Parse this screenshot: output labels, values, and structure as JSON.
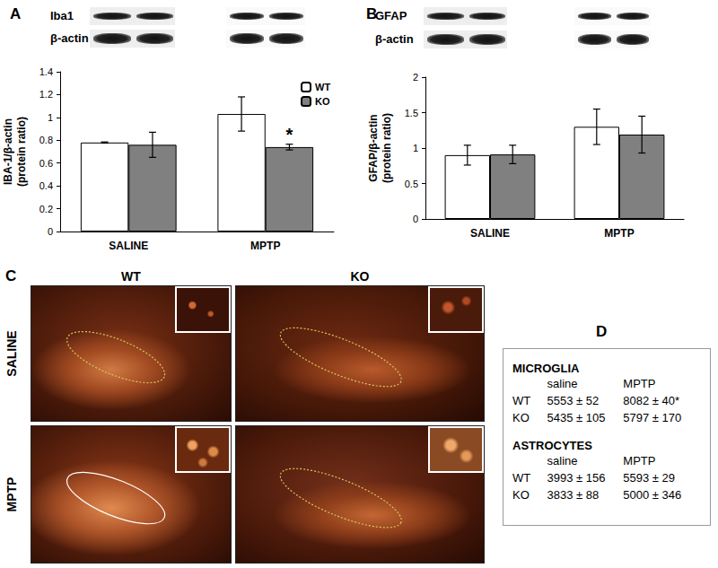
{
  "chart_data": [
    {
      "type": "bar",
      "title": "A",
      "y_label": "IBA-1/β-actin\n(protein ratio)",
      "categories": [
        "SALINE",
        "MPTP"
      ],
      "series": [
        {
          "name": "WT",
          "color": "#ffffff",
          "values": [
            0.78,
            1.03
          ],
          "errors": [
            0.005,
            0.15
          ]
        },
        {
          "name": "KO",
          "color": "#808080",
          "values": [
            0.76,
            0.74
          ],
          "errors": [
            0.11,
            0.025
          ]
        }
      ],
      "annotations": [
        {
          "text": "*",
          "series": "KO",
          "category": "MPTP"
        }
      ],
      "ylim": [
        0,
        1.4
      ],
      "yticks": [
        0,
        0.2,
        0.4,
        0.6,
        0.8,
        1,
        1.2,
        1.4
      ],
      "grid": false,
      "legend": "upper right"
    },
    {
      "type": "bar",
      "title": "B",
      "y_label": "GFAP/β-actin\n(protein ratio)",
      "categories": [
        "SALINE",
        "MPTP"
      ],
      "series": [
        {
          "name": "WT",
          "color": "#ffffff",
          "values": [
            0.9,
            1.3
          ],
          "errors": [
            0.14,
            0.25
          ]
        },
        {
          "name": "KO",
          "color": "#808080",
          "values": [
            0.91,
            1.19
          ],
          "errors": [
            0.13,
            0.26
          ]
        }
      ],
      "ylim": [
        0,
        2
      ],
      "yticks": [
        0,
        0.5,
        1,
        1.5,
        2
      ],
      "grid": false
    }
  ],
  "blots": [
    {
      "panel": "A",
      "rows": [
        "Iba1",
        "β-actin"
      ]
    },
    {
      "panel": "B",
      "rows": [
        "GFAP",
        "β-actin"
      ]
    }
  ],
  "panel_c": {
    "label": "C",
    "columns": [
      "WT",
      "KO"
    ],
    "rows": [
      "SALINE",
      "MPTP"
    ]
  },
  "panel_d": {
    "label": "D",
    "sections": [
      {
        "title": "MICROGLIA",
        "columns": [
          "saline",
          "MPTP"
        ],
        "rows": [
          [
            "WT",
            "5553 ± 52",
            "8082 ± 40*"
          ],
          [
            "KO",
            "5435 ± 105",
            "5797 ± 170"
          ]
        ]
      },
      {
        "title": "ASTROCYTES",
        "columns": [
          "saline",
          "MPTP"
        ],
        "rows": [
          [
            "WT",
            "3993 ± 156",
            "5593 ± 29"
          ],
          [
            "KO",
            "3833 ± 88",
            "5000 ± 346"
          ]
        ]
      }
    ]
  }
}
